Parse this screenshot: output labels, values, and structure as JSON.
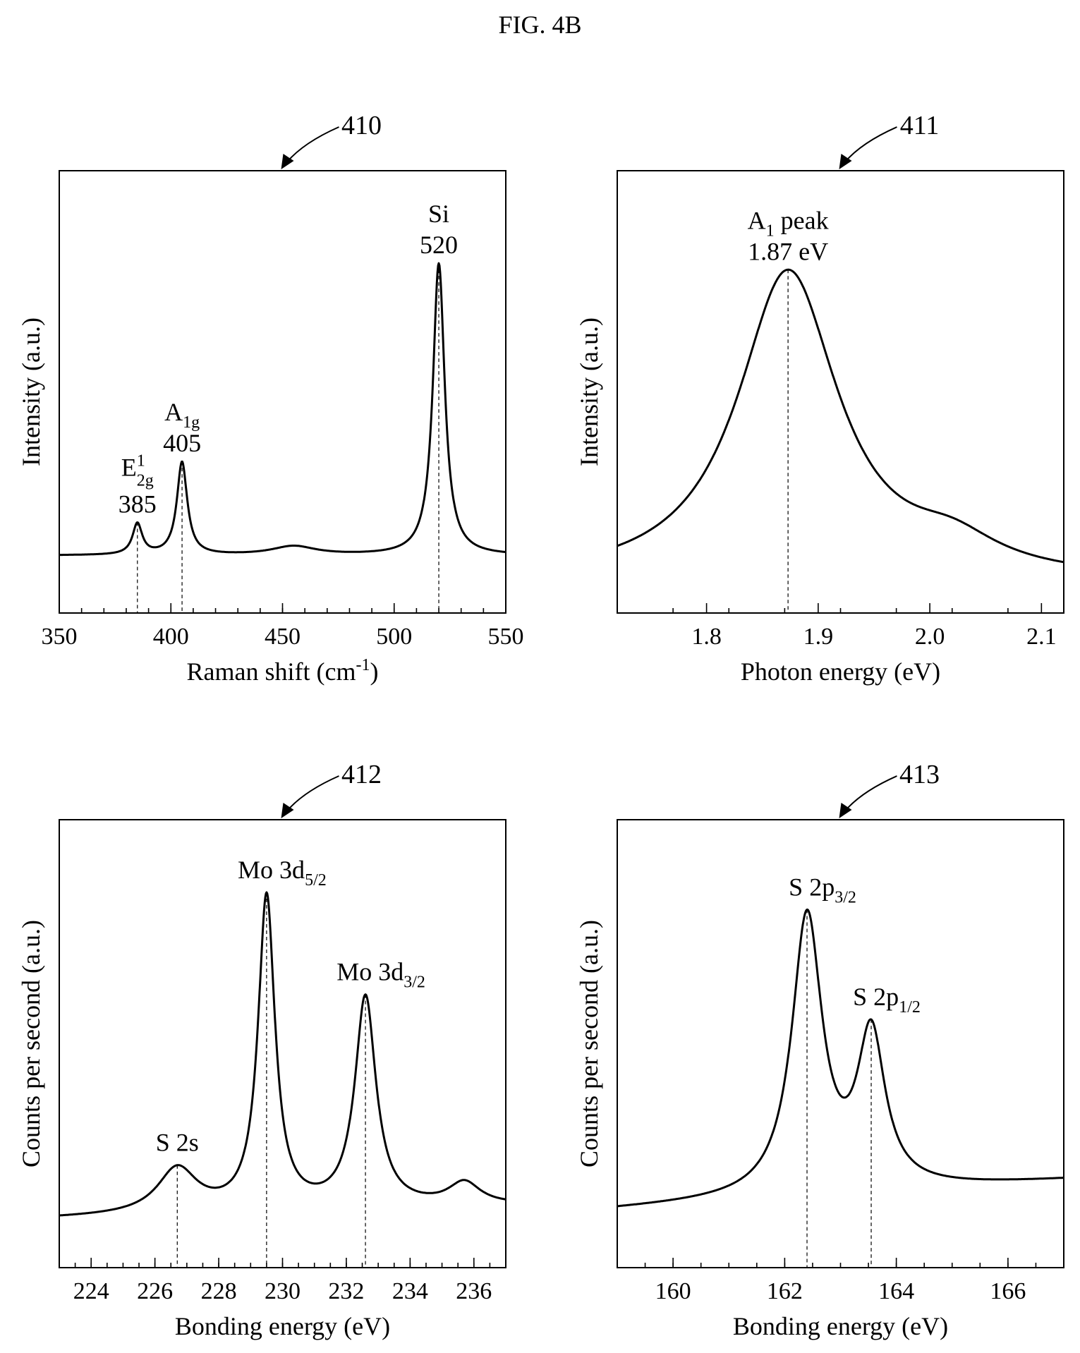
{
  "figure": {
    "title": "FIG. 4B"
  },
  "chart_data": [
    {
      "ref": "410",
      "type": "line",
      "xlabel": "Raman shift (cm",
      "xlabel_sup": "-1",
      "xlabel_tail": ")",
      "ylabel": "Intensity (a.u.)",
      "xlim": [
        350,
        550
      ],
      "ylim": [
        0,
        1
      ],
      "xticks": [
        350,
        400,
        450,
        500,
        550
      ],
      "xtick_labels": [
        "350",
        "400",
        "450",
        "500",
        "550"
      ],
      "minor_step": 10,
      "baseline": 0.13,
      "baseline_slope": 0,
      "peaks": [
        {
          "x": 385,
          "h": 0.07,
          "w": 2.6,
          "label": "E",
          "sub": "2g",
          "sup": "1",
          "value": "385"
        },
        {
          "x": 405,
          "h": 0.21,
          "w": 2.8,
          "label": "A",
          "sub": "1g",
          "value": "405"
        },
        {
          "x": 455,
          "h": 0.02,
          "w": 12,
          "label": ""
        },
        {
          "x": 520,
          "h": 0.66,
          "w": 3.2,
          "label": "Si",
          "value": "520"
        }
      ]
    },
    {
      "ref": "411",
      "type": "line",
      "xlabel": "Photon energy (eV)",
      "ylabel": "Intensity (a.u.)",
      "xlim": [
        1.72,
        2.12
      ],
      "ylim": [
        0,
        1
      ],
      "xticks": [
        1.8,
        1.9,
        2.0,
        2.1
      ],
      "xtick_labels": [
        "1.8",
        "1.9",
        "2.0",
        "2.1"
      ],
      "minor_step": 0.05,
      "baseline": 0.07,
      "baseline_slope": 0,
      "peaks": [
        {
          "x": 1.873,
          "h": 0.7,
          "w": 0.055,
          "label": "A",
          "sub": "1",
          "label_tail": " peak",
          "value": "1.87 eV"
        },
        {
          "x": 2.02,
          "h": 0.06,
          "w": 0.05,
          "label": ""
        }
      ]
    },
    {
      "ref": "412",
      "type": "line",
      "xlabel": "Bonding energy (eV)",
      "ylabel": "Counts per second (a.u.)",
      "xlim": [
        223,
        237
      ],
      "ylim": [
        0,
        1
      ],
      "xticks": [
        224,
        226,
        228,
        230,
        232,
        234,
        236
      ],
      "xtick_labels": [
        "224",
        "226",
        "228",
        "230",
        "232",
        "234",
        "236"
      ],
      "minor_step": 0.5,
      "baseline": 0.11,
      "baseline_slope": 0.0028,
      "peaks": [
        {
          "x": 226.7,
          "h": 0.1,
          "w": 0.75,
          "label": "S 2s",
          "label_dy": 20
        },
        {
          "x": 229.5,
          "h": 0.7,
          "w": 0.32,
          "label": "Mo 3d",
          "sub": "5/2"
        },
        {
          "x": 232.6,
          "h": 0.47,
          "w": 0.4,
          "label": "Mo 3d",
          "sub": "3/2"
        },
        {
          "x": 235.7,
          "h": 0.05,
          "w": 0.6,
          "label": ""
        }
      ]
    },
    {
      "ref": "413",
      "type": "line",
      "xlabel": "Bonding energy (eV)",
      "ylabel": "Counts per second (a.u.)",
      "xlim": [
        159,
        167
      ],
      "ylim": [
        0,
        1
      ],
      "xticks": [
        160,
        162,
        164,
        166
      ],
      "xtick_labels": [
        "160",
        "162",
        "164",
        "166"
      ],
      "minor_step": 0.5,
      "baseline": 0.13,
      "baseline_slope": 0.0065,
      "peaks": [
        {
          "x": 162.4,
          "h": 0.62,
          "w": 0.33,
          "label": "S 2p",
          "sub": "3/2"
        },
        {
          "x": 163.55,
          "h": 0.34,
          "w": 0.3,
          "label": "S 2p",
          "sub": "1/2"
        }
      ]
    }
  ]
}
